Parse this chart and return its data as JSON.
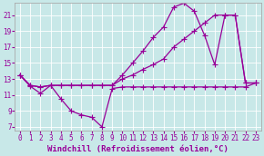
{
  "xlabel": "Windchill (Refroidissement éolien,°C)",
  "bg_color": "#c8e8e8",
  "line_color": "#990099",
  "xlim": [
    -0.5,
    23.5
  ],
  "ylim": [
    6.5,
    22.5
  ],
  "xticks": [
    0,
    1,
    2,
    3,
    4,
    5,
    6,
    7,
    8,
    9,
    10,
    11,
    12,
    13,
    14,
    15,
    16,
    17,
    18,
    19,
    20,
    21,
    22,
    23
  ],
  "yticks": [
    7,
    9,
    11,
    13,
    15,
    17,
    19,
    21
  ],
  "s1_x": [
    0,
    1,
    2,
    3,
    4,
    5,
    6,
    7,
    8,
    9,
    10,
    11,
    12,
    13,
    14,
    15,
    16,
    17,
    18,
    19,
    20,
    21,
    22,
    23
  ],
  "s1_y": [
    13.5,
    12.1,
    11.2,
    12.2,
    10.5,
    9.0,
    8.5,
    8.2,
    7.0,
    11.8,
    12.0,
    12.0,
    12.0,
    12.0,
    12.0,
    12.0,
    12.0,
    12.0,
    12.0,
    12.0,
    12.0,
    12.0,
    12.0,
    12.5
  ],
  "s2_x": [
    0,
    1,
    2,
    3,
    4,
    5,
    6,
    7,
    8,
    9,
    10,
    11,
    12,
    13,
    14,
    15,
    16,
    17,
    18,
    19,
    20,
    21,
    22,
    23
  ],
  "s2_y": [
    13.5,
    12.2,
    12.0,
    12.2,
    12.2,
    12.2,
    12.2,
    12.2,
    12.2,
    12.2,
    13.0,
    13.5,
    14.2,
    14.8,
    15.5,
    17.0,
    18.0,
    19.0,
    20.0,
    21.0,
    21.0,
    21.0,
    12.5,
    12.5
  ],
  "s3_x": [
    0,
    1,
    2,
    3,
    4,
    5,
    6,
    7,
    8,
    9,
    10,
    11,
    12,
    13,
    14,
    15,
    16,
    17,
    18,
    19,
    20,
    21,
    22,
    23
  ],
  "s3_y": [
    13.5,
    12.2,
    12.0,
    12.2,
    12.2,
    12.2,
    12.2,
    12.2,
    12.2,
    12.2,
    13.5,
    15.0,
    16.5,
    18.2,
    19.5,
    22.0,
    22.5,
    21.5,
    18.5,
    14.8,
    21.0,
    21.0,
    12.5,
    12.5
  ],
  "xlabel_fontsize": 6.5,
  "tick_fontsize": 5.5,
  "linewidth": 0.9,
  "markersize": 2.5
}
